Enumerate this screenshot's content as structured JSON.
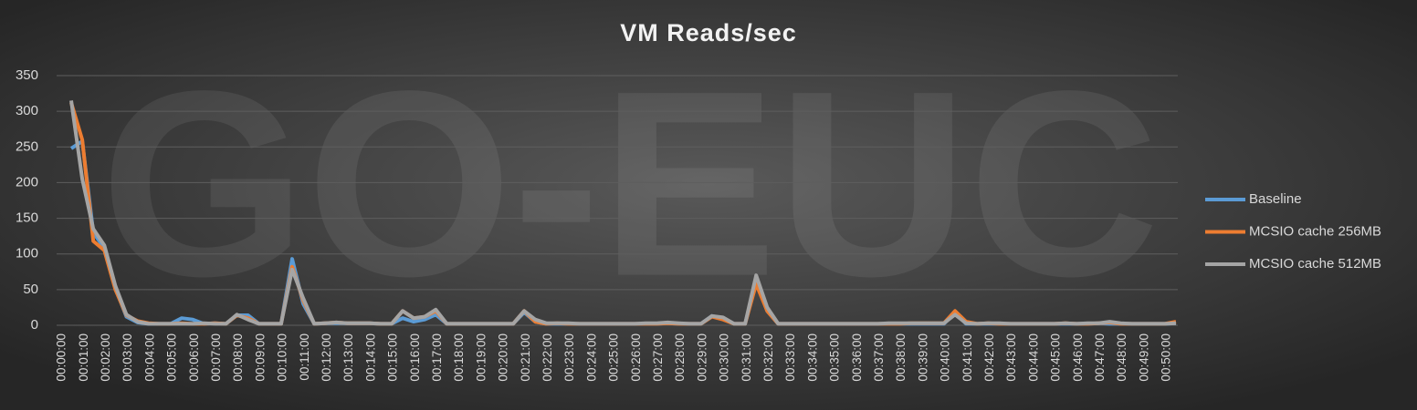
{
  "chart_data": {
    "type": "line",
    "title": "VM Reads/sec",
    "watermark": "GO-EUC",
    "categories": [
      "00:00:00",
      null,
      "00:01:00",
      null,
      "00:02:00",
      null,
      "00:03:00",
      null,
      "00:04:00",
      null,
      "00:05:00",
      null,
      "00:06:00",
      null,
      "00:07:00",
      null,
      "00:08:00",
      null,
      "00:09:00",
      null,
      "00:10:00",
      null,
      "00:11:00",
      null,
      "00:12:00",
      null,
      "00:13:00",
      null,
      "00:14:00",
      null,
      "00:15:00",
      null,
      "00:16:00",
      null,
      "00:17:00",
      null,
      "00:18:00",
      null,
      "00:19:00",
      null,
      "00:20:00",
      null,
      "00:21:00",
      null,
      "00:22:00",
      null,
      "00:23:00",
      null,
      "00:24:00",
      null,
      "00:25:00",
      null,
      "00:26:00",
      null,
      "00:27:00",
      null,
      "00:28:00",
      null,
      "00:29:00",
      null,
      "00:30:00",
      null,
      "00:31:00",
      null,
      "00:32:00",
      null,
      "00:33:00",
      null,
      "00:34:00",
      null,
      "00:35:00",
      null,
      "00:36:00",
      null,
      "00:37:00",
      null,
      "00:38:00",
      null,
      "00:39:00",
      null,
      "00:40:00",
      null,
      "00:41:00",
      null,
      "00:42:00",
      null,
      "00:43:00",
      null,
      "00:44:00",
      null,
      "00:45:00",
      null,
      "00:46:00",
      null,
      "00:47:00",
      null,
      "00:48:00",
      null,
      "00:49:00",
      null,
      "00:50:00"
    ],
    "series": [
      {
        "name": "Baseline",
        "color": "#5b9bd5",
        "values": [
          248,
          258,
          130,
          108,
          52,
          12,
          4,
          2,
          2,
          2,
          10,
          8,
          2,
          3,
          2,
          14,
          14,
          2,
          2,
          2,
          93,
          30,
          2,
          3,
          3,
          3,
          3,
          3,
          2,
          2,
          10,
          5,
          8,
          15,
          2,
          2,
          2,
          2,
          2,
          2,
          2,
          18,
          5,
          2,
          2,
          2,
          2,
          2,
          2,
          2,
          2,
          2,
          2,
          2,
          3,
          2,
          2,
          2,
          13,
          10,
          2,
          2,
          62,
          20,
          2,
          2,
          2,
          2,
          2,
          2,
          2,
          2,
          2,
          2,
          2,
          2,
          2,
          2,
          2,
          2,
          18,
          2,
          2,
          2,
          2,
          2,
          2,
          2,
          2,
          2,
          2,
          2,
          2,
          3,
          2,
          2,
          2,
          2,
          2,
          2,
          3
        ]
      },
      {
        "name": "MCSIO cache 256MB",
        "color": "#ed7d31",
        "values": [
          312,
          260,
          118,
          105,
          50,
          14,
          6,
          3,
          2,
          2,
          3,
          2,
          2,
          3,
          2,
          14,
          10,
          2,
          2,
          2,
          82,
          35,
          2,
          3,
          4,
          3,
          3,
          3,
          2,
          2,
          20,
          10,
          12,
          20,
          2,
          2,
          2,
          2,
          2,
          2,
          2,
          20,
          5,
          2,
          3,
          2,
          2,
          2,
          2,
          2,
          2,
          2,
          2,
          2,
          3,
          2,
          2,
          2,
          12,
          8,
          2,
          2,
          58,
          20,
          2,
          2,
          2,
          2,
          2,
          2,
          2,
          2,
          2,
          2,
          2,
          2,
          3,
          3,
          3,
          3,
          20,
          5,
          2,
          3,
          2,
          2,
          2,
          2,
          2,
          2,
          3,
          2,
          2,
          3,
          4,
          2,
          2,
          2,
          2,
          2,
          5
        ]
      },
      {
        "name": "MCSIO cache 512MB",
        "color": "#a5a5a5",
        "values": [
          315,
          205,
          135,
          112,
          55,
          15,
          5,
          2,
          2,
          2,
          2,
          2,
          3,
          2,
          2,
          15,
          8,
          2,
          2,
          2,
          78,
          38,
          2,
          3,
          4,
          3,
          3,
          3,
          2,
          2,
          20,
          10,
          12,
          22,
          2,
          2,
          2,
          2,
          2,
          2,
          2,
          20,
          8,
          3,
          3,
          3,
          2,
          2,
          2,
          2,
          2,
          2,
          3,
          3,
          4,
          3,
          2,
          2,
          13,
          11,
          2,
          2,
          70,
          25,
          2,
          2,
          2,
          2,
          2,
          2,
          2,
          2,
          2,
          2,
          3,
          3,
          3,
          3,
          3,
          3,
          15,
          3,
          2,
          3,
          3,
          2,
          2,
          2,
          2,
          2,
          3,
          2,
          3,
          3,
          5,
          3,
          2,
          2,
          2,
          2,
          3
        ]
      }
    ],
    "ylim": [
      0,
      350
    ],
    "yticks": [
      0,
      50,
      100,
      150,
      200,
      250,
      300,
      350
    ],
    "grid": true,
    "legend": "right"
  }
}
